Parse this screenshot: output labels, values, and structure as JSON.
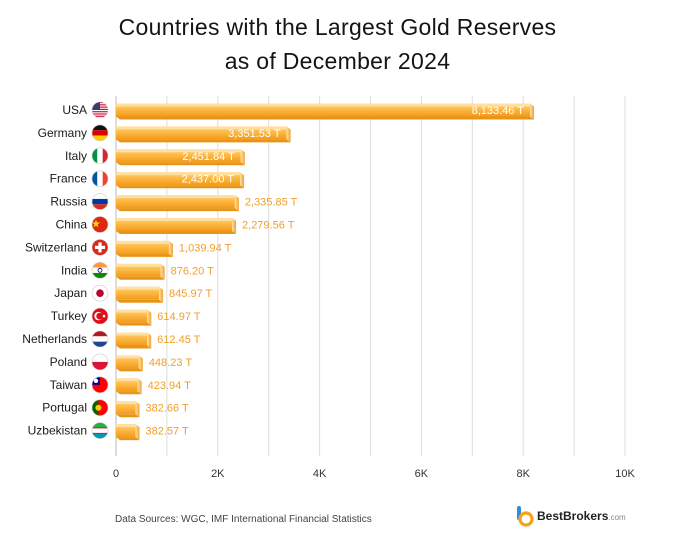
{
  "chart_data": {
    "type": "bar",
    "orientation": "horizontal",
    "title_line1": "Countries with the Largest Gold Reserves",
    "title_line2": "as of December 2024",
    "categories": [
      "USA",
      "Germany",
      "Italy",
      "France",
      "Russia",
      "China",
      "Switzerland",
      "India",
      "Japan",
      "Turkey",
      "Netherlands",
      "Poland",
      "Taiwan",
      "Portugal",
      "Uzbekistan"
    ],
    "values": [
      8133.46,
      3351.53,
      2451.84,
      2437.0,
      2335.85,
      2279.56,
      1039.94,
      876.2,
      845.97,
      614.97,
      612.45,
      448.23,
      423.94,
      382.66,
      382.57
    ],
    "value_labels": [
      "8,133.46 T",
      "3,351.53 T",
      "2,451.84 T",
      "2,437.00 T",
      "2,335.85 T",
      "2,279.56 T",
      "1,039.94 T",
      "876.20 T",
      "845.97 T",
      "614.97 T",
      "612.45 T",
      "448.23 T",
      "423.94 T",
      "382.66 T",
      "382.57 T"
    ],
    "xlim": [
      0,
      10000
    ],
    "xticks": [
      0,
      2000,
      4000,
      6000,
      8000,
      10000
    ],
    "xtick_labels": [
      "0",
      "2K",
      "4K",
      "6K",
      "8K",
      "10K"
    ],
    "xlabel": "",
    "ylabel": "",
    "grid": "vertical",
    "colors": {
      "bar_light": "#FFC65A",
      "bar_dark": "#F5A623",
      "bar_edge": "#E28D10",
      "grid": "#DDDDDD"
    }
  },
  "footer": {
    "source": "Data Sources: WGC, IMF International Financial Statistics",
    "brand_name": "BestBrokers",
    "brand_suffix": ".com"
  }
}
